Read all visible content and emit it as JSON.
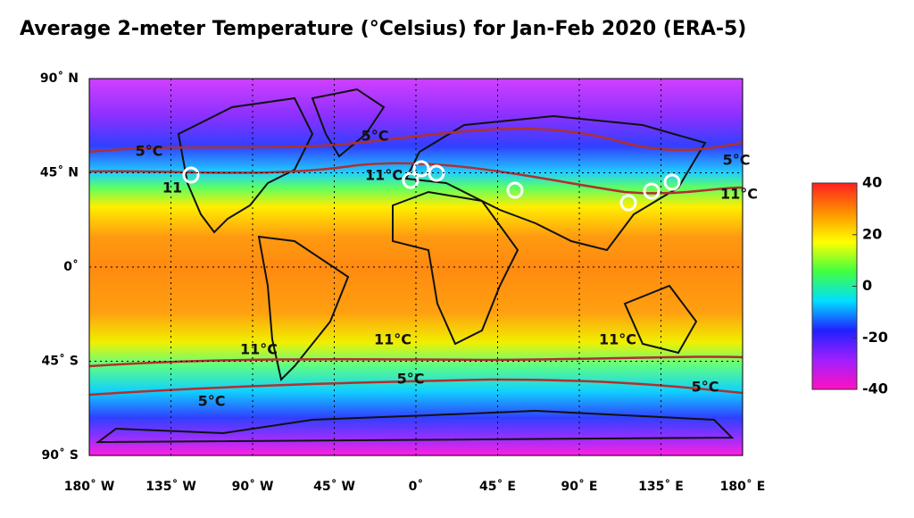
{
  "title": "Average 2-meter Temperature (°Celsius) for Jan-Feb 2020 (ERA-5)",
  "map": {
    "xlim": [
      -180,
      180
    ],
    "ylim": [
      -90,
      90
    ],
    "xticks": [
      {
        "value": -180,
        "label": "180˚ W"
      },
      {
        "value": -135,
        "label": "135˚ W"
      },
      {
        "value": -90,
        "label": "90˚ W"
      },
      {
        "value": -45,
        "label": "45˚ W"
      },
      {
        "value": 0,
        "label": "0˚"
      },
      {
        "value": 45,
        "label": "45˚ E"
      },
      {
        "value": 90,
        "label": "90˚ E"
      },
      {
        "value": 135,
        "label": "135˚ E"
      },
      {
        "value": 180,
        "label": "180˚ E"
      }
    ],
    "yticks": [
      {
        "value": 90,
        "label": "90˚ N"
      },
      {
        "value": 45,
        "label": "45˚ N"
      },
      {
        "value": 0,
        "label": "0˚"
      },
      {
        "value": -45,
        "label": "45˚ S"
      },
      {
        "value": -90,
        "label": "90˚ S"
      }
    ],
    "grid": true,
    "contour_labels": [
      "5°C",
      "11",
      "5°C",
      "11°C",
      "5°C",
      "11°C",
      "11°C",
      "11°C",
      "11°C",
      "5°C",
      "5°C",
      "5°C"
    ],
    "contour_color": "#b03030"
  },
  "colorbar": {
    "clim": [
      -40,
      40
    ],
    "ticks": [
      40,
      20,
      0,
      -20,
      -40
    ],
    "colors": [
      "#ff10c0",
      "#a020ff",
      "#2020ff",
      "#00e0ff",
      "#40ff40",
      "#ffff00",
      "#ff9000",
      "#ff2020"
    ]
  }
}
